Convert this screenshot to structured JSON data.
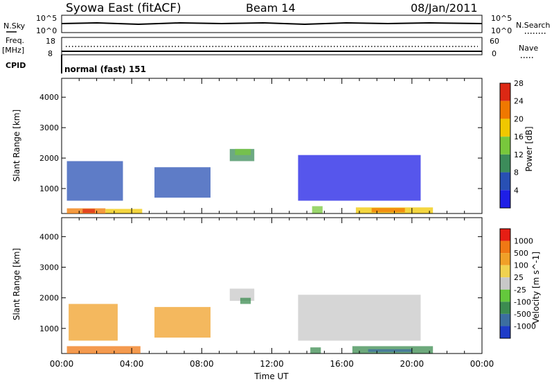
{
  "header": {
    "title": "Syowa East (fitACF)",
    "beam": "Beam 14",
    "date": "08/Jan/2011"
  },
  "status_panels": {
    "nsky_label": "N.Sky",
    "nsearch_label": "N.Search",
    "scale_top_left": "10^5",
    "scale_bottom_left": "10^0",
    "scale_top_right": "10^5",
    "scale_bottom_right": "10^0",
    "freq_label": "Freq.",
    "freq_unit": "[MHz]",
    "freq_top": "18",
    "freq_bottom": "8",
    "nave_label": "Nave",
    "nave_top": "60",
    "nave_bottom": "0",
    "cpid_label": "CPID",
    "cpid_text": "normal (fast) 151"
  },
  "chart_data": [
    {
      "type": "heatmap",
      "title": "Power",
      "ylabel": "Slant Range [km]",
      "xlabel": "",
      "ylim": [
        180,
        4620
      ],
      "xlim_hours": [
        0,
        24
      ],
      "yticks": [
        1000,
        2000,
        3000,
        4000
      ],
      "colorbar": {
        "label": "Power [dB]",
        "ticks": [
          "4",
          "8",
          "12",
          "16",
          "20",
          "24",
          "28"
        ],
        "colors": [
          "#1e1ee6",
          "#2850b4",
          "#3c8c5a",
          "#78c83c",
          "#f0c800",
          "#f07800",
          "#dc2814"
        ]
      },
      "regions": [
        {
          "x0": 0.3,
          "x1": 2.5,
          "y0": 180,
          "y1": 350,
          "level": 5
        },
        {
          "x0": 1.2,
          "x1": 1.9,
          "y0": 200,
          "y1": 330,
          "level": 6
        },
        {
          "x0": 2.5,
          "x1": 4.6,
          "y0": 190,
          "y1": 330,
          "level": 4
        },
        {
          "x0": 0.3,
          "x1": 3.5,
          "y0": 600,
          "y1": 1900,
          "level": 1
        },
        {
          "x0": 9.6,
          "x1": 11.0,
          "y0": 1900,
          "y1": 2300,
          "level": 2
        },
        {
          "x0": 9.9,
          "x1": 10.8,
          "y0": 2100,
          "y1": 2300,
          "level": 3
        },
        {
          "x0": 14.3,
          "x1": 14.9,
          "y0": 190,
          "y1": 420,
          "level": 3
        },
        {
          "x0": 16.8,
          "x1": 21.2,
          "y0": 190,
          "y1": 380,
          "level": 4
        },
        {
          "x0": 17.7,
          "x1": 19.6,
          "y0": 220,
          "y1": 360,
          "level": 5
        },
        {
          "x0": 13.5,
          "x1": 20.5,
          "y0": 600,
          "y1": 2100,
          "level": 0
        },
        {
          "x0": 5.3,
          "x1": 8.5,
          "y0": 700,
          "y1": 1700,
          "level": 1
        }
      ]
    },
    {
      "type": "heatmap",
      "title": "Velocity",
      "ylabel": "Slant Range [km]",
      "xlabel": "Time UT",
      "ylim": [
        180,
        4620
      ],
      "xlim_hours": [
        0,
        24
      ],
      "yticks": [
        1000,
        2000,
        3000,
        4000
      ],
      "xticks": [
        "00:00",
        "04:00",
        "08:00",
        "12:00",
        "16:00",
        "20:00",
        "00:00"
      ],
      "colorbar": {
        "label": "Velocity [m s^-1]",
        "ticks": [
          "1000",
          "500",
          "100",
          "25",
          "-25",
          "-100",
          "-500",
          "-1000"
        ],
        "colors": [
          "#1e3cc8",
          "#3c6ea0",
          "#3c8c50",
          "#64c83c",
          "#c8c8c8",
          "#f0d250",
          "#f0a028",
          "#f07814",
          "#e61e14"
        ]
      },
      "regions": [
        {
          "x0": 0.3,
          "x1": 4.5,
          "y0": 180,
          "y1": 420,
          "level": 7
        },
        {
          "x0": 0.4,
          "x1": 3.2,
          "y0": 600,
          "y1": 1800,
          "level": 6
        },
        {
          "x0": 9.6,
          "x1": 11.0,
          "y0": 1900,
          "y1": 2300,
          "level": 4
        },
        {
          "x0": 10.2,
          "x1": 10.8,
          "y0": 1800,
          "y1": 2000,
          "level": 2
        },
        {
          "x0": 14.2,
          "x1": 14.8,
          "y0": 190,
          "y1": 380,
          "level": 2
        },
        {
          "x0": 16.6,
          "x1": 21.2,
          "y0": 190,
          "y1": 420,
          "level": 2
        },
        {
          "x0": 17.5,
          "x1": 20.0,
          "y0": 230,
          "y1": 320,
          "level": 1
        },
        {
          "x0": 13.5,
          "x1": 20.5,
          "y0": 600,
          "y1": 2100,
          "level": 4
        },
        {
          "x0": 5.3,
          "x1": 8.5,
          "y0": 700,
          "y1": 1700,
          "level": 6
        }
      ]
    }
  ]
}
